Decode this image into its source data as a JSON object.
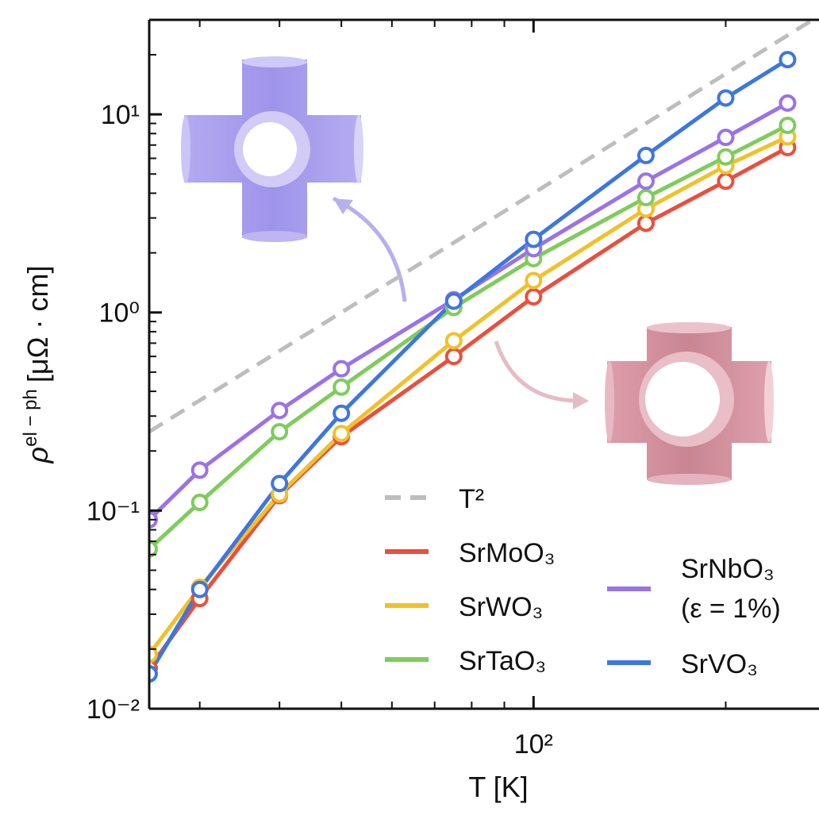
{
  "chart_data": {
    "type": "line",
    "x_label": "T [K]",
    "y_label": {
      "symbol": "ρ",
      "superscript": "el − ph",
      "unit": "[μΩ · cm]"
    },
    "log_x": true,
    "log_y": true,
    "xlim": [
      25,
      280
    ],
    "ylim": [
      0.01,
      30
    ],
    "xticks": [
      {
        "value": 100,
        "label": "10²"
      }
    ],
    "xminorticks": [
      30,
      40,
      50,
      60,
      70,
      80,
      90,
      200
    ],
    "yticks": [
      {
        "value": 0.01,
        "label": "10⁻²"
      },
      {
        "value": 0.1,
        "label": "10⁻¹"
      },
      {
        "value": 1,
        "label": "10⁰"
      },
      {
        "value": 10,
        "label": "10¹"
      }
    ],
    "yminorticks": [
      0.02,
      0.03,
      0.04,
      0.05,
      0.06,
      0.07,
      0.08,
      0.09,
      0.2,
      0.3,
      0.4,
      0.5,
      0.6,
      0.7,
      0.8,
      0.9,
      2,
      3,
      4,
      5,
      6,
      7,
      8,
      9,
      20,
      30
    ],
    "reference": {
      "name": "T²",
      "color": "#bdbdbd",
      "x": [
        25,
        280
      ],
      "values": [
        0.25,
        31.4
      ]
    },
    "x": [
      25,
      30,
      40,
      50,
      75,
      100,
      150,
      200,
      250
    ],
    "series": [
      {
        "name": "SrMoO₃",
        "color": "#ea4f3d",
        "values": [
          0.016,
          0.036,
          0.119,
          0.236,
          0.6,
          1.2,
          2.82,
          4.6,
          6.8
        ]
      },
      {
        "name": "SrWO₃",
        "color": "#f1c12a",
        "values": [
          0.0188,
          0.041,
          0.121,
          0.245,
          0.72,
          1.45,
          3.33,
          5.5,
          7.7
        ]
      },
      {
        "name": "SrTaO₃",
        "color": "#7fcc5c",
        "values": [
          0.064,
          0.11,
          0.25,
          0.42,
          1.06,
          1.87,
          3.8,
          6.1,
          8.8
        ]
      },
      {
        "name": "SrNbO₃ (ε = 1%)",
        "color": "#9a72e8",
        "values": [
          0.09,
          0.16,
          0.32,
          0.52,
          1.16,
          2.1,
          4.6,
          7.65,
          11.4
        ]
      },
      {
        "name": "SrVO₃",
        "color": "#3d77de",
        "values": [
          0.015,
          0.04,
          0.137,
          0.31,
          1.14,
          2.34,
          6.2,
          12.1,
          18.9
        ]
      }
    ]
  }
}
